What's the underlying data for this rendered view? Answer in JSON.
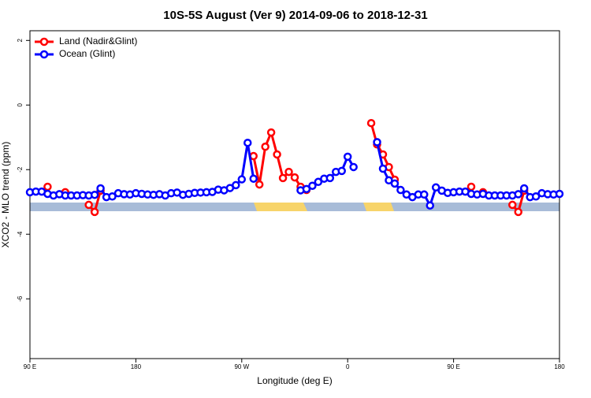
{
  "chart_data": {
    "type": "line",
    "title": "10S-5S August (Ver 9)   2014-09-06 to 2018-12-31",
    "x_label": "Longitude (deg E)",
    "y_label": "XCO2 - MLO trend (ppm)",
    "xlim": [
      90,
      540
    ],
    "xticks": [
      {
        "value": 90,
        "label": "90 E"
      },
      {
        "value": 180,
        "label": "180"
      },
      {
        "value": 270,
        "label": "90 W"
      },
      {
        "value": 360,
        "label": "0"
      },
      {
        "value": 450,
        "label": "90 E"
      },
      {
        "value": 540,
        "label": "180"
      }
    ],
    "ylim": [
      -7.85,
      2.3
    ],
    "yticks": [
      2,
      0,
      -2,
      -4,
      -6
    ],
    "legend": "top-left",
    "x": [
      90,
      95,
      100,
      105,
      110,
      115,
      120,
      125,
      130,
      135,
      140,
      145,
      150,
      155,
      160,
      165,
      170,
      175,
      180,
      185,
      190,
      195,
      200,
      205,
      210,
      215,
      220,
      225,
      230,
      235,
      240,
      245,
      250,
      255,
      260,
      265,
      270,
      275,
      280,
      285,
      290,
      295,
      300,
      305,
      310,
      315,
      320,
      325,
      330,
      335,
      340,
      345,
      350,
      355,
      360,
      365,
      370,
      375,
      380,
      385,
      390,
      395,
      400,
      405,
      410,
      415,
      420,
      425,
      430,
      435,
      440,
      445,
      450,
      455,
      460,
      465,
      470,
      475,
      480,
      485,
      490,
      495,
      500,
      505,
      510,
      515,
      520,
      525,
      530,
      535,
      540
    ],
    "series": [
      {
        "name": "Land (Nadir&Glint)",
        "color": "#ff0000",
        "values": [
          null,
          null,
          null,
          -2.53,
          null,
          null,
          -2.7,
          null,
          null,
          null,
          -3.09,
          -3.31,
          -2.65,
          null,
          null,
          null,
          null,
          null,
          null,
          null,
          null,
          null,
          null,
          null,
          null,
          null,
          null,
          null,
          null,
          null,
          null,
          null,
          null,
          null,
          null,
          null,
          null,
          null,
          -1.58,
          -2.46,
          -1.29,
          -0.85,
          -1.53,
          -2.26,
          -2.07,
          -2.24,
          -2.53,
          -2.63,
          null,
          null,
          null,
          null,
          null,
          null,
          null,
          null,
          null,
          null,
          -0.56,
          -1.22,
          -1.53,
          -1.92,
          -2.31,
          null,
          null,
          null,
          null,
          null,
          null,
          null,
          null,
          null,
          null,
          null,
          null,
          -2.53,
          null,
          -2.7,
          null,
          null,
          null,
          null,
          -3.09,
          -3.31,
          -2.65,
          null,
          null,
          null,
          null,
          null,
          null
        ]
      },
      {
        "name": "Ocean (Glint)",
        "color": "#0000ff",
        "values": [
          -2.7,
          -2.68,
          -2.68,
          -2.75,
          -2.8,
          -2.76,
          -2.8,
          -2.8,
          -2.8,
          -2.79,
          -2.8,
          -2.78,
          -2.58,
          -2.85,
          -2.83,
          -2.73,
          -2.76,
          -2.77,
          -2.73,
          -2.75,
          -2.77,
          -2.78,
          -2.76,
          -2.8,
          -2.73,
          -2.71,
          -2.78,
          -2.75,
          -2.72,
          -2.71,
          -2.7,
          -2.69,
          -2.62,
          -2.64,
          -2.57,
          -2.48,
          -2.3,
          -1.17,
          -2.28,
          null,
          null,
          null,
          null,
          null,
          null,
          null,
          -2.64,
          -2.6,
          -2.5,
          -2.38,
          -2.28,
          -2.26,
          -2.07,
          -2.04,
          -1.6,
          -1.92,
          null,
          null,
          null,
          -1.15,
          -1.97,
          -2.33,
          -2.43,
          -2.63,
          -2.77,
          -2.85,
          -2.77,
          -2.77,
          -3.11,
          -2.55,
          -2.65,
          -2.72,
          -2.7,
          -2.68,
          -2.68,
          -2.75,
          -2.77,
          -2.75,
          -2.8,
          -2.8,
          -2.8,
          -2.8,
          -2.8,
          -2.76,
          -2.58,
          -2.85,
          -2.83,
          -2.73,
          -2.76,
          -2.77,
          -2.75
        ]
      }
    ]
  }
}
